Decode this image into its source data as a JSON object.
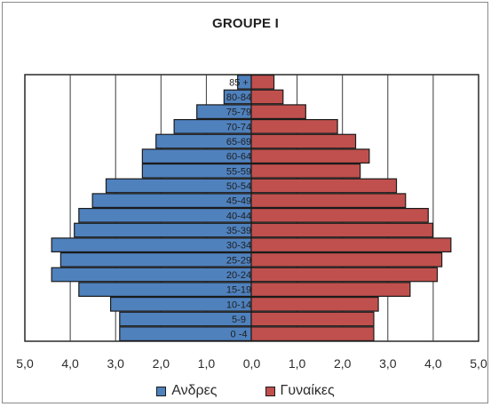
{
  "chart_data": {
    "type": "bar",
    "orientation": "horizontal",
    "layout": "population-pyramid",
    "title": "GROUPE I",
    "categories": [
      "0 -4",
      "5-9",
      "10-14",
      "15-19",
      "20-24",
      "25-29",
      "30-34",
      "35-39",
      "40-44",
      "45-49",
      "50-54",
      "55-59",
      "60-64",
      "65-69",
      "70-74",
      "75-79",
      "80-84",
      "85 +"
    ],
    "series": [
      {
        "name": "Ανδρες",
        "color": "#4f81bd",
        "values": [
          2.9,
          2.9,
          3.1,
          3.8,
          4.4,
          4.2,
          4.4,
          3.9,
          3.8,
          3.5,
          3.2,
          2.4,
          2.4,
          2.1,
          1.7,
          1.2,
          0.6,
          0.3
        ]
      },
      {
        "name": "Γυναίκες",
        "color": "#c0504d",
        "values": [
          2.7,
          2.7,
          2.8,
          3.5,
          4.1,
          4.2,
          4.4,
          4.0,
          3.9,
          3.4,
          3.2,
          2.4,
          2.6,
          2.3,
          1.9,
          1.2,
          0.7,
          0.5
        ]
      }
    ],
    "x_tick_labels": [
      "5,0",
      "4,0",
      "3,0",
      "2,0",
      "1,0",
      "0,0",
      "1,0",
      "2,0",
      "3,0",
      "4,0",
      "5,0"
    ],
    "xlim": [
      -5,
      5
    ],
    "grid": true,
    "legend_position": "bottom"
  }
}
